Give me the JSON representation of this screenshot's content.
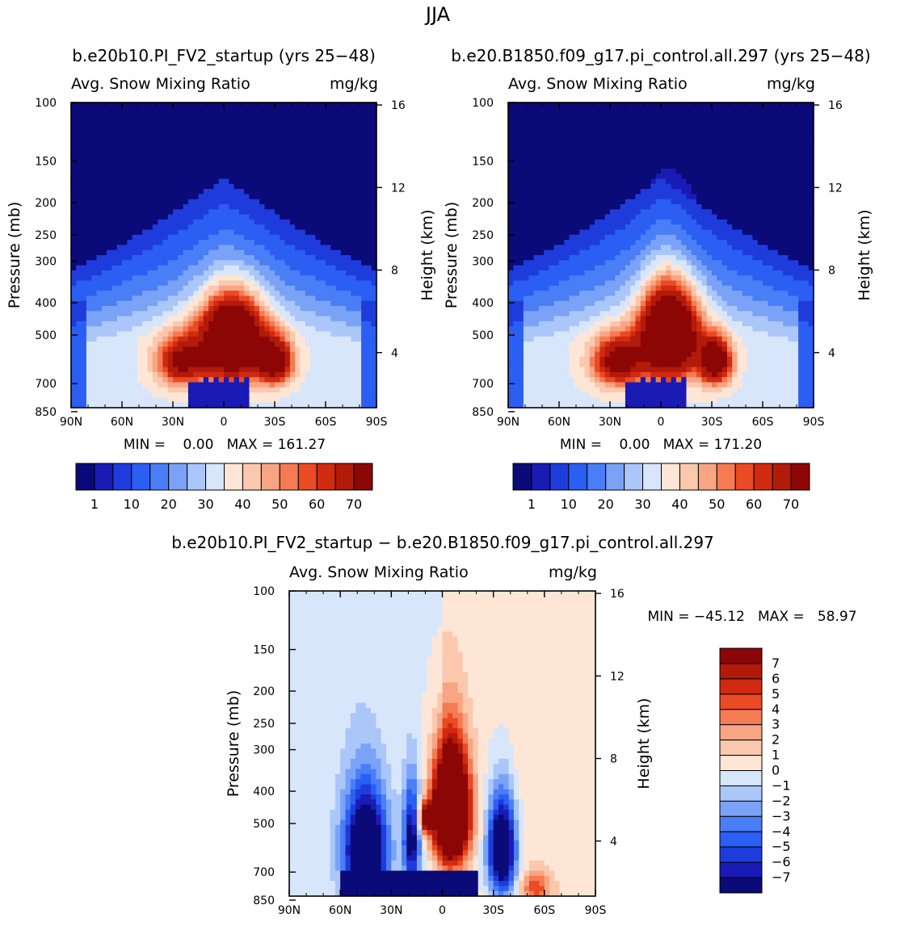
{
  "title": "JJA",
  "header_left": "b.e20b10.PI_FV2_startup (yrs 25−48)",
  "header_right": "b.e20.B1850.f09_g17.pi_control.all.297 (yrs 25−48)",
  "diff_header": "b.e20b10.PI_FV2_startup − b.e20.B1850.f09_g17.pi_control.all.297",
  "colors": {
    "seq": [
      "#0a0a78",
      "#1a1ab4",
      "#1e3cdc",
      "#2b5ef2",
      "#4a7ef6",
      "#7aa3f7",
      "#abc6f9",
      "#d8e6fb",
      "#fde6d6",
      "#fbc8ae",
      "#f8a584",
      "#f47b52",
      "#ea4a24",
      "#d12a10",
      "#b21a0a",
      "#8c0606"
    ],
    "div": [
      "#0a0a78",
      "#1a1ab4",
      "#1e3cdc",
      "#2b5ef2",
      "#4a7ef6",
      "#7aa3f7",
      "#abc6f9",
      "#d8e6fb",
      "#fde6d6",
      "#fbc8ae",
      "#f8a584",
      "#f47b52",
      "#ea4a24",
      "#d12a10",
      "#b21a0a",
      "#8c0606"
    ]
  },
  "chart_data": [
    {
      "type": "heatmap",
      "id": "left",
      "title": "Avg. Snow Mixing Ratio",
      "units": "mg/kg",
      "xlabel": "",
      "ylabel": "Pressure (mb)",
      "y2label": "Height (km)",
      "x_ticks": [
        "90N",
        "60N",
        "30N",
        "0",
        "30S",
        "60S",
        "90S"
      ],
      "y_ticks": [
        "100",
        "150",
        "200",
        "250",
        "300",
        "400",
        "500",
        "700",
        "850"
      ],
      "y2_ticks": [
        "16",
        "12",
        "8",
        "4"
      ],
      "min_text": "MIN =    0.00   MAX = 161.27",
      "levels": [
        "1",
        "10",
        "20",
        "30",
        "40",
        "50",
        "60",
        "70"
      ],
      "blobs": [
        {
          "lat": -5,
          "p": 520,
          "amp": 85,
          "wl": 18,
          "wp": 140
        },
        {
          "lat": -30,
          "p": 600,
          "amp": 55,
          "wl": 10,
          "wp": 90
        },
        {
          "lat": 25,
          "p": 600,
          "amp": 45,
          "wl": 14,
          "wp": 100
        }
      ]
    },
    {
      "type": "heatmap",
      "id": "right",
      "title": "Avg. Snow Mixing Ratio",
      "units": "mg/kg",
      "xlabel": "",
      "ylabel": "Pressure (mb)",
      "y2label": "Height (km)",
      "x_ticks": [
        "90N",
        "60N",
        "30N",
        "0",
        "30S",
        "60S",
        "90S"
      ],
      "y_ticks": [
        "100",
        "150",
        "200",
        "250",
        "300",
        "400",
        "500",
        "700",
        "850"
      ],
      "y2_ticks": [
        "16",
        "12",
        "8",
        "4"
      ],
      "min_text": "MIN =    0.00   MAX = 171.20",
      "levels": [
        "1",
        "10",
        "20",
        "30",
        "40",
        "50",
        "60",
        "70"
      ],
      "blobs": [
        {
          "lat": -5,
          "p": 500,
          "amp": 90,
          "wl": 16,
          "wp": 150
        },
        {
          "lat": -32,
          "p": 600,
          "amp": 65,
          "wl": 9,
          "wp": 90
        },
        {
          "lat": 25,
          "p": 600,
          "amp": 50,
          "wl": 15,
          "wp": 100
        }
      ]
    },
    {
      "type": "heatmap",
      "id": "diff",
      "title": "Avg. Snow Mixing Ratio",
      "units": "mg/kg",
      "xlabel": "",
      "ylabel": "Pressure (mb)",
      "y2label": "Height (km)",
      "x_ticks": [
        "90N",
        "60N",
        "30N",
        "0",
        "30S",
        "60S",
        "90S"
      ],
      "y_ticks": [
        "100",
        "150",
        "200",
        "250",
        "300",
        "400",
        "500",
        "700",
        "850"
      ],
      "y2_ticks": [
        "16",
        "12",
        "8",
        "4"
      ],
      "min_text": "MIN = −45.12   MAX =   58.97",
      "levels": [
        "7",
        "6",
        "5",
        "4",
        "3",
        "2",
        "1",
        "0",
        "−1",
        "−2",
        "−3",
        "−4",
        "−5",
        "−6",
        "−7"
      ]
    }
  ]
}
